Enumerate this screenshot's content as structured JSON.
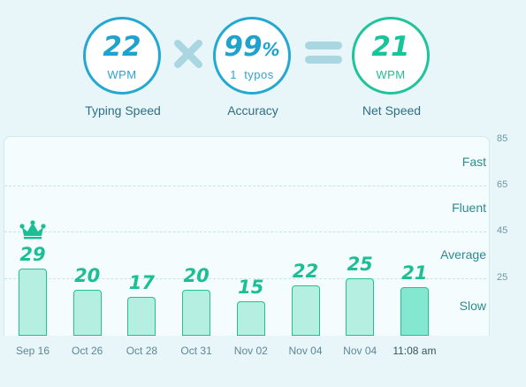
{
  "summary": {
    "typing_speed": {
      "value": "22",
      "unit": "WPM",
      "caption": "Typing Speed"
    },
    "accuracy": {
      "value": "99",
      "suffix": "%",
      "detail": "1  typos",
      "caption": "Accuracy"
    },
    "net_speed": {
      "value": "21",
      "unit": "WPM",
      "caption": "Net Speed"
    },
    "operators": [
      "times-icon",
      "equals-icon"
    ]
  },
  "chart_data": {
    "type": "bar",
    "categories": [
      "Sep 16",
      "Oct 26",
      "Oct 28",
      "Oct 31",
      "Nov 02",
      "Nov 04",
      "Nov 04",
      "11:08 am"
    ],
    "values": [
      29,
      20,
      17,
      20,
      15,
      22,
      25,
      21
    ],
    "value_labels": [
      "29",
      "20",
      "17",
      "20",
      "15",
      "22",
      "25",
      "21"
    ],
    "ylim": [
      0,
      85
    ],
    "y_ticks": [
      "85",
      "65",
      "45",
      "25"
    ],
    "speed_levels": [
      "Fast",
      "Fluent",
      "Average",
      "Slow"
    ],
    "best_marker": "crown-icon",
    "highlighted_category": "11:08 am",
    "grid": true,
    "colors": {
      "bar": "#b5efe1",
      "bar_current": "#84e7cf",
      "bar_border": "#23c093",
      "value_text": "#1cbf95"
    }
  }
}
